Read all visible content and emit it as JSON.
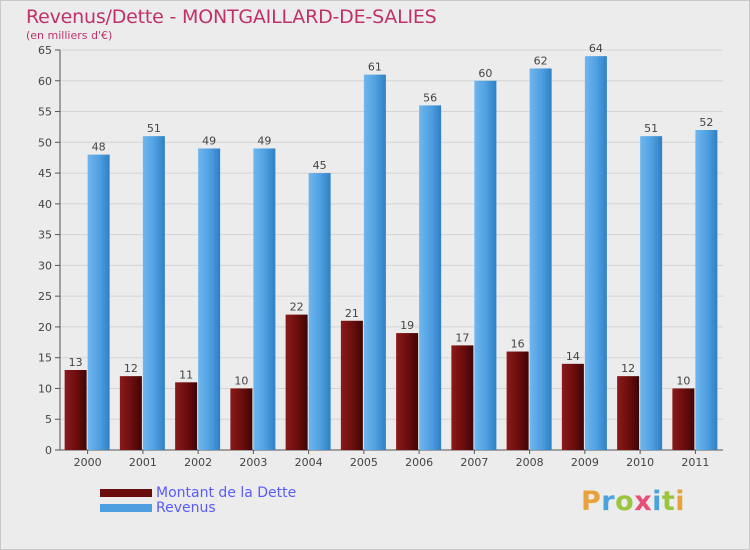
{
  "title": "Revenus/Dette - MONTGAILLARD-DE-SALIES",
  "subtitle": "(en milliers d'€)",
  "logo": {
    "letters": [
      "P",
      "r",
      "o",
      "x",
      "i",
      "t",
      "i"
    ],
    "colors": [
      "#e9a23b",
      "#4aa3df",
      "#9bc53d",
      "#e94e77",
      "#4aa3df",
      "#9bc53d",
      "#e9a23b"
    ]
  },
  "chart_data": {
    "type": "bar",
    "categories": [
      "2000",
      "2001",
      "2002",
      "2003",
      "2004",
      "2005",
      "2006",
      "2007",
      "2008",
      "2009",
      "2010",
      "2011"
    ],
    "series": [
      {
        "name": "Montant de la Dette",
        "values": [
          13,
          12,
          11,
          10,
          22,
          21,
          19,
          17,
          16,
          14,
          12,
          10
        ],
        "color": "#6b0d0d"
      },
      {
        "name": "Revenus",
        "values": [
          48,
          51,
          49,
          49,
          45,
          61,
          56,
          60,
          62,
          64,
          51,
          52
        ],
        "color": "#4e9fe0"
      }
    ],
    "ylim": [
      0,
      65
    ],
    "yticks": [
      0,
      5,
      10,
      15,
      20,
      25,
      30,
      35,
      40,
      45,
      50,
      55,
      60,
      65
    ],
    "grid": true,
    "legend_position": "bottom-left"
  }
}
